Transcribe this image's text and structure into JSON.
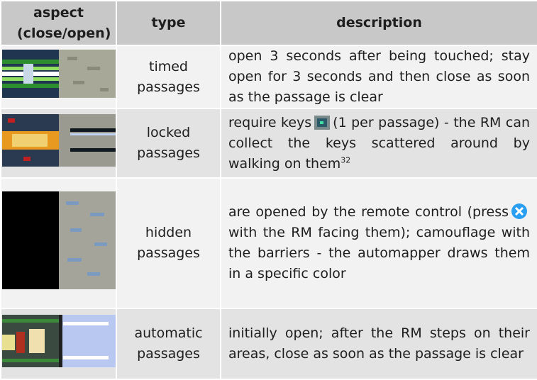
{
  "table": {
    "header": [
      "aspect (close/open)",
      "type",
      "description"
    ],
    "rows": [
      {
        "type": "timed passages",
        "description": [
          "open 3 seconds after being touched; stay open for 3 seconds and then close as soon as the passage is clear"
        ]
      },
      {
        "type": "locked passages",
        "description": [
          "require keys",
          "(1 per passage) - the RM can collect the keys scattered around by walking on them"
        ],
        "footnote": "32"
      },
      {
        "type": "hidden passages",
        "description": [
          "are opened by the remote control (press",
          "with the RM facing them); camouflage with the barriers - the automapper draws them in a specific color"
        ]
      },
      {
        "type": "automatic passages",
        "description": [
          "initially open; after the RM steps on their areas, close as soon as the passage is clear"
        ]
      }
    ]
  }
}
